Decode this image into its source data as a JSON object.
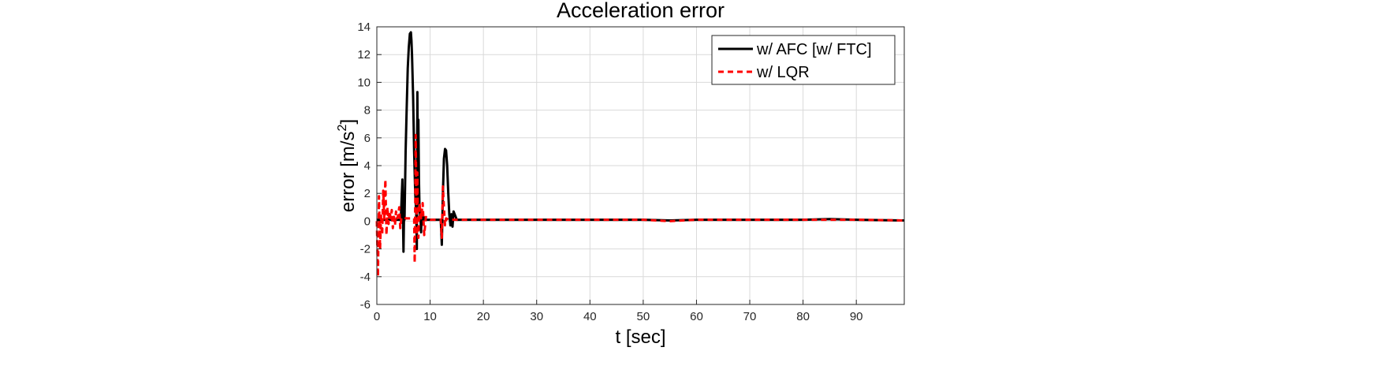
{
  "chart_data": {
    "type": "line",
    "title": "Acceleration error",
    "xlabel": "t [sec]",
    "ylabel": "error [m/s",
    "ylabel_superscript": "2",
    "ylabel_suffix": "]",
    "xlim": [
      0,
      99
    ],
    "ylim": [
      -6,
      14
    ],
    "xticks": [
      0,
      10,
      20,
      30,
      40,
      50,
      60,
      70,
      80,
      90
    ],
    "yticks": [
      -6,
      -4,
      -2,
      0,
      2,
      4,
      6,
      8,
      10,
      12,
      14
    ],
    "grid": true,
    "legend_position": "top-right",
    "series": [
      {
        "name": "w/ AFC [w/ FTC]",
        "color": "#000000",
        "style": "solid",
        "x": [
          0,
          3,
          4.5,
          4.8,
          5.0,
          5.1,
          5.2,
          5.3,
          5.4,
          5.6,
          5.8,
          6.0,
          6.2,
          6.4,
          6.5,
          6.6,
          6.8,
          7.0,
          7.2,
          7.4,
          7.5,
          7.6,
          7.7,
          7.8,
          7.9,
          8.0,
          8.1,
          8.2,
          8.3,
          8.4,
          8.6,
          8.8,
          9.0,
          10,
          11,
          12.0,
          12.2,
          12.4,
          12.6,
          12.8,
          13.0,
          13.2,
          13.4,
          13.6,
          13.8,
          14.0,
          14.2,
          14.4,
          15,
          20,
          30,
          40,
          50,
          55,
          60,
          70,
          80,
          85,
          90,
          99
        ],
        "y": [
          0.1,
          0.1,
          0.1,
          3.0,
          -2.2,
          0.5,
          0.1,
          2.5,
          5.0,
          8.0,
          11.0,
          12.5,
          13.5,
          13.6,
          13.0,
          12.0,
          9.0,
          5.0,
          2.0,
          0.5,
          -2.0,
          9.3,
          5.0,
          7.3,
          3.0,
          1.0,
          0.5,
          0.2,
          -0.8,
          0.5,
          -0.2,
          0.3,
          0.1,
          0.1,
          0.1,
          0.1,
          -1.7,
          2.0,
          4.5,
          5.2,
          5.1,
          4.0,
          2.0,
          0.5,
          -0.3,
          0.5,
          -0.4,
          0.7,
          0.1,
          0.1,
          0.1,
          0.1,
          0.1,
          0.05,
          0.1,
          0.1,
          0.1,
          0.15,
          0.1,
          0.05
        ]
      },
      {
        "name": "w/ LQR",
        "color": "#ff0000",
        "style": "dashed",
        "x": [
          0,
          0.2,
          0.4,
          0.6,
          0.8,
          1.0,
          1.2,
          1.4,
          1.6,
          1.8,
          2.0,
          2.2,
          2.4,
          2.6,
          2.8,
          3.0,
          3.2,
          3.4,
          3.6,
          3.8,
          4.0,
          4.2,
          4.4,
          4.6,
          5.0,
          5.5,
          6.0,
          6.5,
          7.0,
          7.1,
          7.2,
          7.3,
          7.4,
          7.5,
          7.6,
          7.7,
          7.8,
          8.0,
          8.3,
          8.6,
          8.9,
          9.2,
          9.5,
          10,
          11,
          12.0,
          12.2,
          12.4,
          12.6,
          12.8,
          13.0,
          13.5,
          14,
          15,
          20,
          30,
          40,
          50,
          55,
          60,
          70,
          80,
          85,
          90,
          99
        ],
        "y": [
          0.0,
          -4.0,
          1.8,
          -2.0,
          0.5,
          -1.0,
          2.2,
          0.1,
          3.0,
          -1.0,
          1.0,
          -0.2,
          0.7,
          0.2,
          0.8,
          -0.5,
          0.5,
          -0.3,
          0.7,
          0.2,
          0.4,
          1.0,
          -0.5,
          0.2,
          0.3,
          0.2,
          0.2,
          0.2,
          0.2,
          -3.0,
          1.5,
          6.2,
          2.0,
          -1.0,
          3.5,
          0.5,
          -1.2,
          1.3,
          0.2,
          1.3,
          -1.0,
          0.3,
          0.2,
          0.1,
          0.1,
          0.1,
          -1.2,
          2.5,
          1.0,
          -0.3,
          0.2,
          0.1,
          0.1,
          0.1,
          0.1,
          0.1,
          0.1,
          0.1,
          0.0,
          0.1,
          0.1,
          0.1,
          0.1,
          0.1,
          0.05
        ]
      }
    ]
  }
}
